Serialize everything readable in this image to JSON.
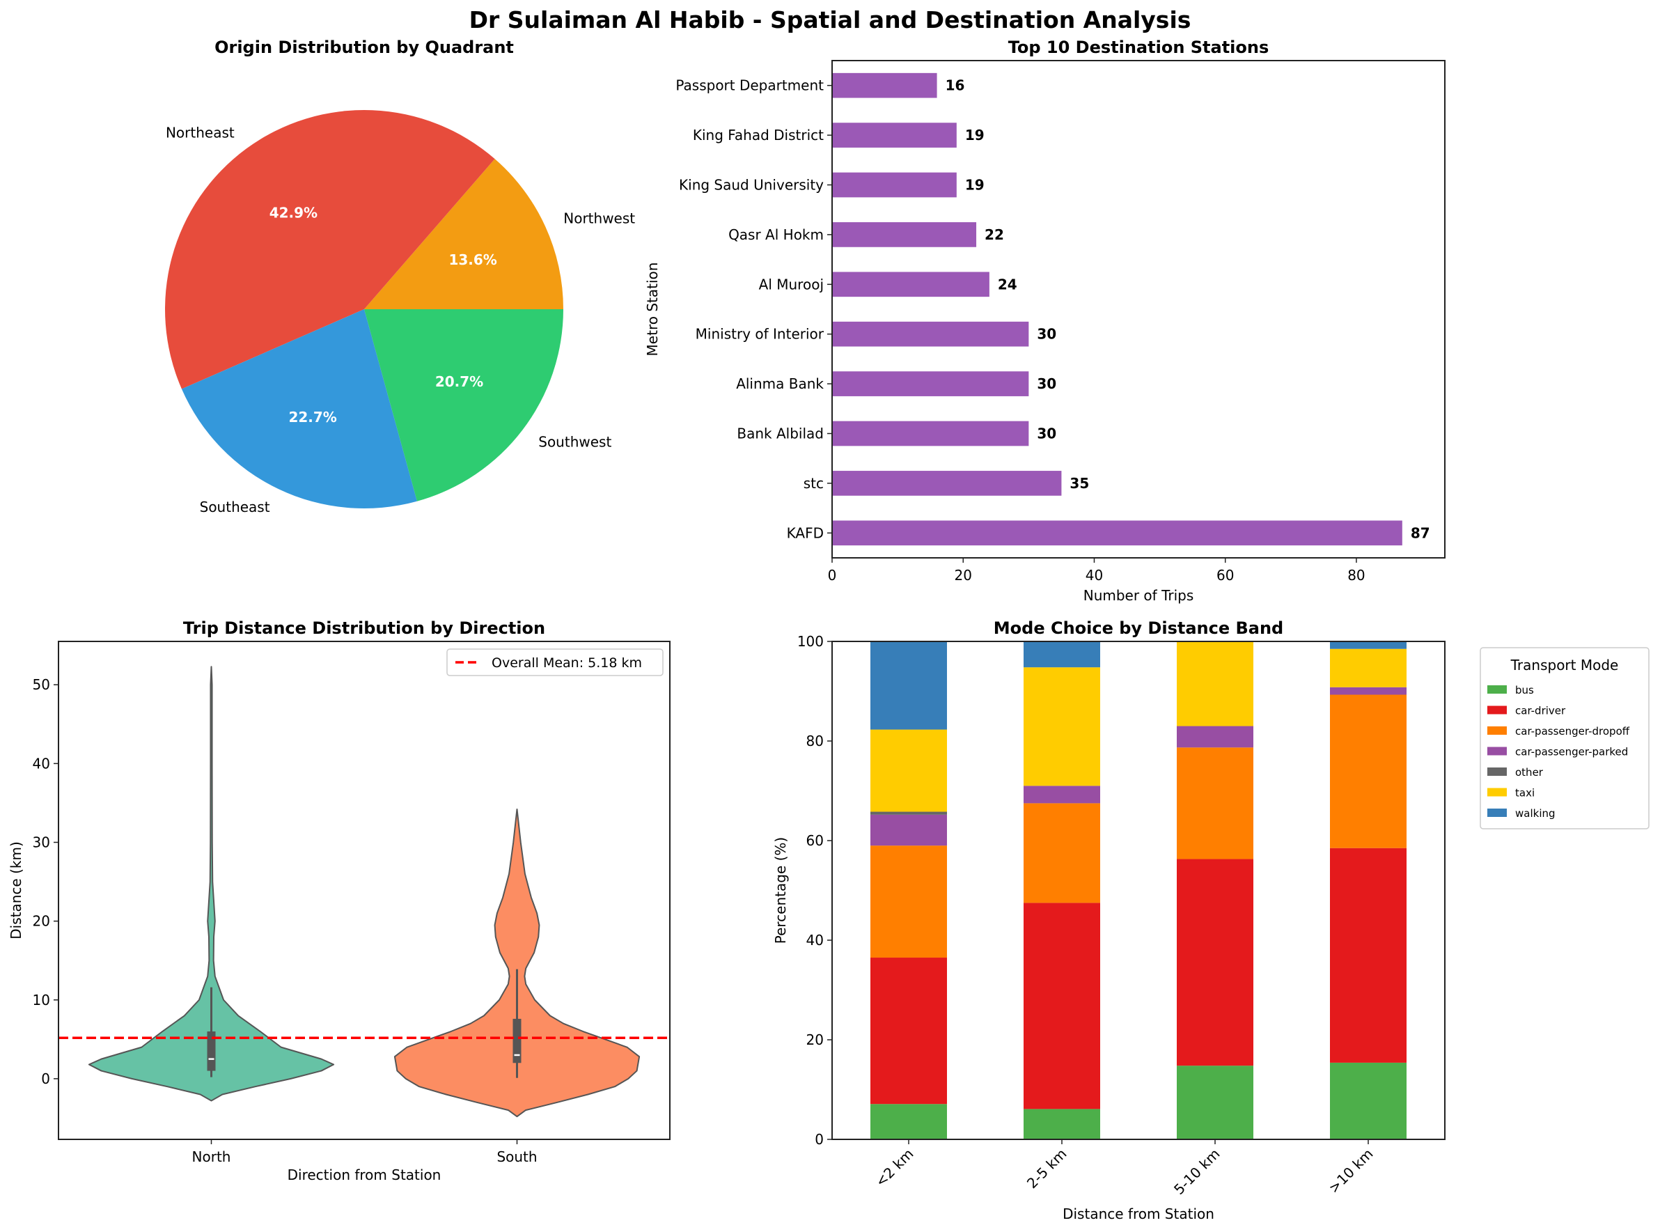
{
  "figure": {
    "title": "Dr Sulaiman Al Habib - Spatial and Destination Analysis"
  },
  "chart_data": [
    {
      "type": "pie",
      "title": "Origin Distribution by Quadrant",
      "labels": [
        "Northwest",
        "Northeast",
        "Southeast",
        "Southwest"
      ],
      "values": [
        13.6,
        42.9,
        22.7,
        20.7
      ],
      "pct_labels": [
        "13.6%",
        "42.9%",
        "22.7%",
        "20.7%"
      ],
      "colors": [
        "#f39c12",
        "#e74c3c",
        "#3498db",
        "#2ecc71"
      ]
    },
    {
      "type": "bar",
      "orientation": "horizontal",
      "title": "Top 10 Destination Stations",
      "xlabel": "Number of Trips",
      "ylabel": "Metro Station",
      "categories": [
        "Passport Department",
        "King Fahad District",
        "King Saud University",
        "Qasr Al Hokm",
        "Al Murooj",
        "Ministry of Interior",
        "Alinma Bank",
        "Bank Albilad",
        "stc",
        "KAFD"
      ],
      "values": [
        16,
        19,
        19,
        22,
        24,
        30,
        30,
        30,
        35,
        87
      ],
      "value_labels": [
        "16",
        "19",
        "19",
        "22",
        "24",
        "30",
        "30",
        "30",
        "35",
        "87"
      ],
      "xlim": [
        0,
        93.5
      ],
      "xticks": [
        "0",
        "20",
        "40",
        "60",
        "80"
      ],
      "color": "#9b59b6"
    },
    {
      "type": "violin",
      "title": "Trip Distance Distribution by Direction",
      "xlabel": "Direction from Station",
      "ylabel": "Distance (km)",
      "categories": [
        "North",
        "South"
      ],
      "colors": [
        "#66c2a5",
        "#fc8d62"
      ],
      "ylim": [
        -7.7,
        55.5
      ],
      "yticks": [
        "0",
        "10",
        "20",
        "30",
        "40",
        "50"
      ],
      "mean_line": {
        "value": 5.18,
        "label": "Overall Mean: 5.18 km",
        "color": "#ff0000"
      },
      "series": [
        {
          "name": "North",
          "box": {
            "whisker_low": 0.2,
            "q1": 1.0,
            "median": 2.5,
            "q3": 6.0,
            "whisker_high": 11.6
          },
          "density": [
            [
              -2.8,
              0
            ],
            [
              -2,
              0.09
            ],
            [
              -1,
              0.36
            ],
            [
              0,
              0.65
            ],
            [
              1,
              0.9
            ],
            [
              1.8,
              1.0
            ],
            [
              2.5,
              0.9
            ],
            [
              4,
              0.57
            ],
            [
              6,
              0.4
            ],
            [
              8,
              0.22
            ],
            [
              10,
              0.1
            ],
            [
              13,
              0.03
            ],
            [
              15,
              0.018
            ],
            [
              18,
              0.02
            ],
            [
              20,
              0.03
            ],
            [
              22,
              0.022
            ],
            [
              25,
              0.01
            ],
            [
              30,
              0.007
            ],
            [
              40,
              0.006
            ],
            [
              50,
              0.006
            ],
            [
              52.3,
              0
            ]
          ]
        },
        {
          "name": "South",
          "box": {
            "whisker_low": 0.1,
            "q1": 2.0,
            "median": 3.0,
            "q3": 7.6,
            "whisker_high": 13.9
          },
          "density": [
            [
              -4.8,
              0
            ],
            [
              -4,
              0.07
            ],
            [
              -3,
              0.33
            ],
            [
              -2,
              0.58
            ],
            [
              -1,
              0.8
            ],
            [
              0,
              0.91
            ],
            [
              1,
              0.98
            ],
            [
              2.8,
              1.0
            ],
            [
              4,
              0.9
            ],
            [
              5,
              0.72
            ],
            [
              6,
              0.54
            ],
            [
              7,
              0.38
            ],
            [
              8,
              0.27
            ],
            [
              10,
              0.145
            ],
            [
              12,
              0.072
            ],
            [
              13,
              0.062
            ],
            [
              14,
              0.072
            ],
            [
              16,
              0.14
            ],
            [
              18,
              0.175
            ],
            [
              19.5,
              0.182
            ],
            [
              21,
              0.163
            ],
            [
              23,
              0.116
            ],
            [
              26,
              0.065
            ],
            [
              30,
              0.03
            ],
            [
              34.2,
              0
            ]
          ]
        }
      ]
    },
    {
      "type": "bar",
      "stacked": true,
      "title": "Mode Choice by Distance Band",
      "xlabel": "Distance from Station",
      "ylabel": "Percentage (%)",
      "categories": [
        "<2 km",
        "2-5 km",
        "5-10 km",
        ">10 km"
      ],
      "ylim": [
        0,
        100
      ],
      "yticks": [
        "0",
        "20",
        "40",
        "60",
        "80",
        "100"
      ],
      "legend": {
        "title": "Transport Mode",
        "placement": "outside-right"
      },
      "series": [
        {
          "name": "bus",
          "color": "#4daf4a",
          "values": [
            7.1,
            6.1,
            14.8,
            15.4
          ]
        },
        {
          "name": "car-driver",
          "color": "#e41a1c",
          "values": [
            29.4,
            41.4,
            41.5,
            43.1
          ]
        },
        {
          "name": "car-passenger-dropoff",
          "color": "#ff7f00",
          "values": [
            22.5,
            20.0,
            22.4,
            30.8
          ]
        },
        {
          "name": "car-passenger-parked",
          "color": "#984ea3",
          "values": [
            6.2,
            3.5,
            4.3,
            1.5
          ]
        },
        {
          "name": "other",
          "color": "#666666",
          "values": [
            0.6,
            0,
            0,
            0
          ]
        },
        {
          "name": "taxi",
          "color": "#ffcc00",
          "values": [
            16.5,
            23.8,
            17.0,
            7.7
          ]
        },
        {
          "name": "walking",
          "color": "#377eb8",
          "values": [
            17.7,
            5.2,
            0,
            1.5
          ]
        }
      ]
    }
  ]
}
